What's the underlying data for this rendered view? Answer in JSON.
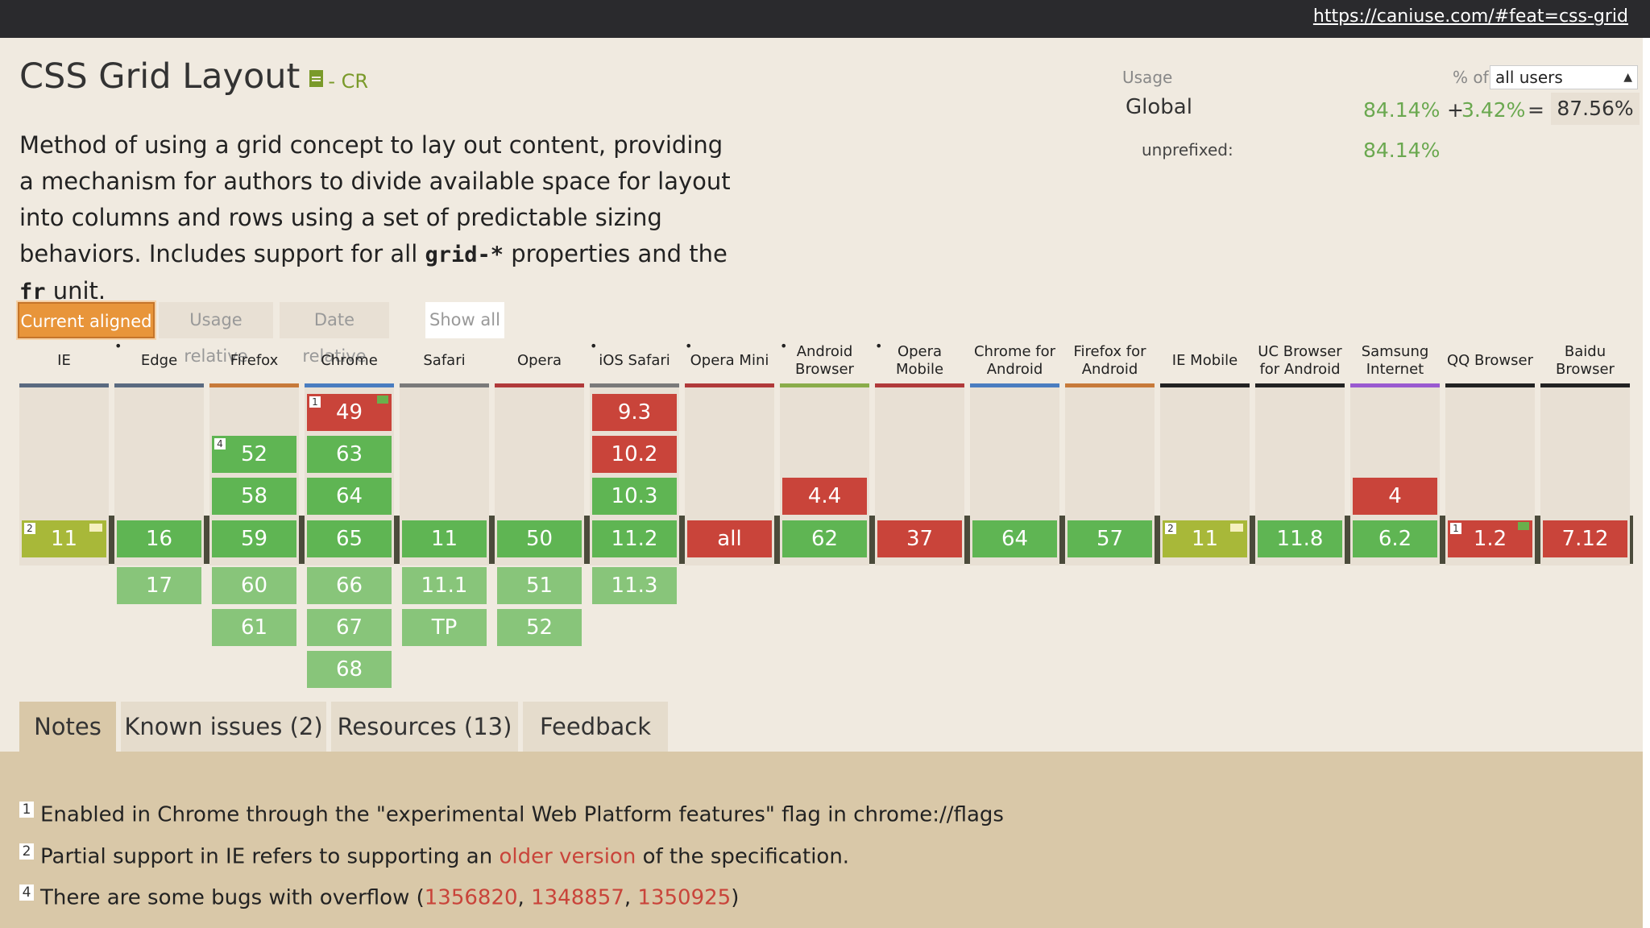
{
  "url": "https://caniuse.com/#feat=css-grid",
  "feature": {
    "title": "CSS Grid Layout",
    "doc_icon": "document-icon",
    "status": "- CR",
    "description_parts": [
      "Method of using a grid concept to lay out content, providing a mechanism for authors to divide available space for layout into columns and rows using a set of predictable sizing behaviors. Includes support for all ",
      "grid-*",
      " properties and the ",
      "fr",
      " unit."
    ]
  },
  "usage": {
    "label": "Usage",
    "pct_of_label": "% of",
    "users_select": "all users",
    "global_label": "Global",
    "global_full": "84.14%",
    "plus": "+",
    "global_partial": "3.42%",
    "equals": "=",
    "global_total": "87.56%",
    "unprefixed_label": "unprefixed:",
    "unprefixed_value": "84.14%"
  },
  "view_buttons": {
    "current": "Current aligned",
    "usage": "Usage relative",
    "date": "Date relative",
    "show_all": "Show all"
  },
  "colors": {
    "supported": "#5fb553",
    "not_supported": "#c9443a",
    "partial": "#a8b839",
    "future": "#88c57a"
  },
  "browsers": [
    {
      "name": "IE",
      "star": false,
      "line": "#5a6a80",
      "cells": [
        {
          "v": "11",
          "t": "p",
          "row": 3,
          "note": "2",
          "minus": true
        }
      ]
    },
    {
      "name": "Edge",
      "star": true,
      "line": "#5a6a80",
      "cells": [
        {
          "v": "16",
          "t": "y",
          "row": 3
        },
        {
          "v": "17",
          "t": "fy",
          "row": 4
        }
      ]
    },
    {
      "name": "Firefox",
      "star": false,
      "line": "#c77a3a",
      "cells": [
        {
          "v": "52",
          "t": "y",
          "row": 1,
          "note": "4"
        },
        {
          "v": "58",
          "t": "y",
          "row": 2
        },
        {
          "v": "59",
          "t": "y",
          "row": 3
        },
        {
          "v": "60",
          "t": "fy",
          "row": 4
        },
        {
          "v": "61",
          "t": "fy",
          "row": 5
        }
      ]
    },
    {
      "name": "Chrome",
      "star": false,
      "line": "#4a7dc0",
      "cells": [
        {
          "v": "49",
          "t": "n",
          "row": 0,
          "note": "1",
          "flag": true
        },
        {
          "v": "63",
          "t": "y",
          "row": 1
        },
        {
          "v": "64",
          "t": "y",
          "row": 2
        },
        {
          "v": "65",
          "t": "y",
          "row": 3
        },
        {
          "v": "66",
          "t": "fy",
          "row": 4
        },
        {
          "v": "67",
          "t": "fy",
          "row": 5
        },
        {
          "v": "68",
          "t": "fy",
          "row": 6
        }
      ]
    },
    {
      "name": "Safari",
      "star": false,
      "line": "#7a7a7a",
      "cells": [
        {
          "v": "11",
          "t": "y",
          "row": 3
        },
        {
          "v": "11.1",
          "t": "fy",
          "row": 4
        },
        {
          "v": "TP",
          "t": "fy",
          "row": 5
        }
      ]
    },
    {
      "name": "Opera",
      "star": false,
      "line": "#b03a3a",
      "cells": [
        {
          "v": "50",
          "t": "y",
          "row": 3
        },
        {
          "v": "51",
          "t": "fy",
          "row": 4
        },
        {
          "v": "52",
          "t": "fy",
          "row": 5
        }
      ]
    },
    {
      "name": "iOS Safari",
      "star": true,
      "line": "#7a7a7a",
      "cells": [
        {
          "v": "9.3",
          "t": "n",
          "row": 0
        },
        {
          "v": "10.2",
          "t": "n",
          "row": 1
        },
        {
          "v": "10.3",
          "t": "y",
          "row": 2
        },
        {
          "v": "11.2",
          "t": "y",
          "row": 3
        },
        {
          "v": "11.3",
          "t": "fy",
          "row": 4
        }
      ]
    },
    {
      "name": "Opera Mini",
      "star": true,
      "line": "#b03a3a",
      "cells": [
        {
          "v": "all",
          "t": "n",
          "row": 3
        }
      ]
    },
    {
      "name": "Android Browser",
      "star": true,
      "line": "#8aac4a",
      "cells": [
        {
          "v": "4.4",
          "t": "n",
          "row": 2
        },
        {
          "v": "62",
          "t": "y",
          "row": 3
        }
      ]
    },
    {
      "name": "Opera Mobile",
      "star": true,
      "line": "#b03a3a",
      "cells": [
        {
          "v": "37",
          "t": "n",
          "row": 3
        }
      ]
    },
    {
      "name": "Chrome for Android",
      "star": false,
      "line": "#4a7dc0",
      "cells": [
        {
          "v": "64",
          "t": "y",
          "row": 3
        }
      ]
    },
    {
      "name": "Firefox for Android",
      "star": false,
      "line": "#c77a3a",
      "cells": [
        {
          "v": "57",
          "t": "y",
          "row": 3
        }
      ]
    },
    {
      "name": "IE Mobile",
      "star": false,
      "line": "#222222",
      "cells": [
        {
          "v": "11",
          "t": "p",
          "row": 3,
          "note": "2",
          "minus": true
        }
      ]
    },
    {
      "name": "UC Browser for Android",
      "star": false,
      "line": "#222222",
      "cells": [
        {
          "v": "11.8",
          "t": "y",
          "row": 3
        }
      ]
    },
    {
      "name": "Samsung Internet",
      "star": false,
      "line": "#9a5ad0",
      "cells": [
        {
          "v": "4",
          "t": "n",
          "row": 2
        },
        {
          "v": "6.2",
          "t": "y",
          "row": 3
        }
      ]
    },
    {
      "name": "QQ Browser",
      "star": false,
      "line": "#222222",
      "cells": [
        {
          "v": "1.2",
          "t": "n",
          "row": 3,
          "note": "1",
          "flag": true
        }
      ]
    },
    {
      "name": "Baidu Browser",
      "star": false,
      "line": "#222222",
      "cells": [
        {
          "v": "7.12",
          "t": "n",
          "row": 3
        }
      ]
    }
  ],
  "tabs": [
    "Notes",
    "Known issues (2)",
    "Resources (13)",
    "Feedback"
  ],
  "notes": [
    {
      "num": "1",
      "parts": [
        {
          "text": "Enabled in Chrome through the \"experimental Web Platform features\" flag in chrome://flags"
        }
      ]
    },
    {
      "num": "2",
      "parts": [
        {
          "text": "Partial support in IE refers to supporting an "
        },
        {
          "text": "older version",
          "link": true
        },
        {
          "text": " of the specification."
        }
      ]
    },
    {
      "num": "4",
      "parts": [
        {
          "text": "There are some bugs with overflow ("
        },
        {
          "text": "1356820",
          "link": true
        },
        {
          "text": ", "
        },
        {
          "text": "1348857",
          "link": true
        },
        {
          "text": ", "
        },
        {
          "text": "1350925",
          "link": true
        },
        {
          "text": ")"
        }
      ]
    }
  ]
}
